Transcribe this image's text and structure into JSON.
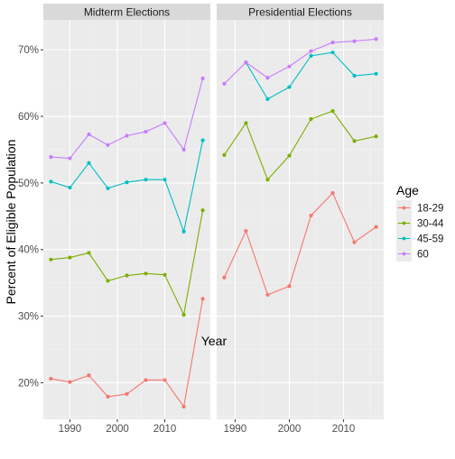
{
  "chart_data": {
    "type": "line",
    "xlabel": "Year",
    "ylabel": "Percent of Eligible Population",
    "legend_title": "Age",
    "legend_position": "right",
    "grid": true,
    "ylim": [
      14.5,
      74.5
    ],
    "yticks": [
      20,
      30,
      40,
      50,
      60,
      70
    ],
    "ytick_labels": [
      "20%",
      "30%",
      "40%",
      "50%",
      "60%",
      "70%"
    ],
    "series_colors": {
      "18-29": "#F8766D",
      "30-44": "#7CAE00",
      "45-59": "#00BFC4",
      "60": "#C77CFF"
    },
    "panels": [
      {
        "title": "Midterm Elections",
        "xlim": [
          1984.4,
          2019.6
        ],
        "xticks": [
          1990,
          2000,
          2010
        ],
        "xtick_labels": [
          "1990",
          "2000",
          "2010"
        ],
        "x": [
          1986,
          1990,
          1994,
          1998,
          2002,
          2006,
          2010,
          2014,
          2018
        ],
        "series": [
          {
            "name": "18-29",
            "values": [
              20.6,
              20.1,
              21.1,
              17.9,
              18.3,
              20.4,
              20.4,
              16.4,
              32.6
            ]
          },
          {
            "name": "30-44",
            "values": [
              38.5,
              38.8,
              39.5,
              35.3,
              36.1,
              36.4,
              36.2,
              30.2,
              45.9
            ]
          },
          {
            "name": "45-59",
            "values": [
              50.2,
              49.3,
              53.0,
              49.2,
              50.1,
              50.5,
              50.5,
              42.7,
              56.4
            ]
          },
          {
            "name": "60",
            "values": [
              53.9,
              53.7,
              57.3,
              55.7,
              57.1,
              57.7,
              59.0,
              55.0,
              65.7
            ]
          }
        ]
      },
      {
        "title": "Presidential Elections",
        "xlim": [
          1986.6,
          2017.4
        ],
        "xticks": [
          1990,
          2000,
          2010
        ],
        "xtick_labels": [
          "1990",
          "2000",
          "2010"
        ],
        "x": [
          1988,
          1992,
          1996,
          2000,
          2004,
          2008,
          2012,
          2016
        ],
        "series": [
          {
            "name": "18-29",
            "values": [
              35.8,
              42.8,
              33.2,
              34.5,
              45.1,
              48.5,
              41.1,
              43.4
            ]
          },
          {
            "name": "30-44",
            "values": [
              54.2,
              59.0,
              50.5,
              54.1,
              59.6,
              60.8,
              56.3,
              57.0
            ]
          },
          {
            "name": "45-59",
            "values": [
              null,
              68.1,
              62.6,
              64.4,
              69.1,
              69.6,
              66.1,
              66.4
            ]
          },
          {
            "name": "60",
            "values": [
              64.9,
              68.1,
              65.8,
              67.5,
              69.8,
              71.1,
              71.3,
              71.6
            ]
          }
        ]
      }
    ]
  }
}
